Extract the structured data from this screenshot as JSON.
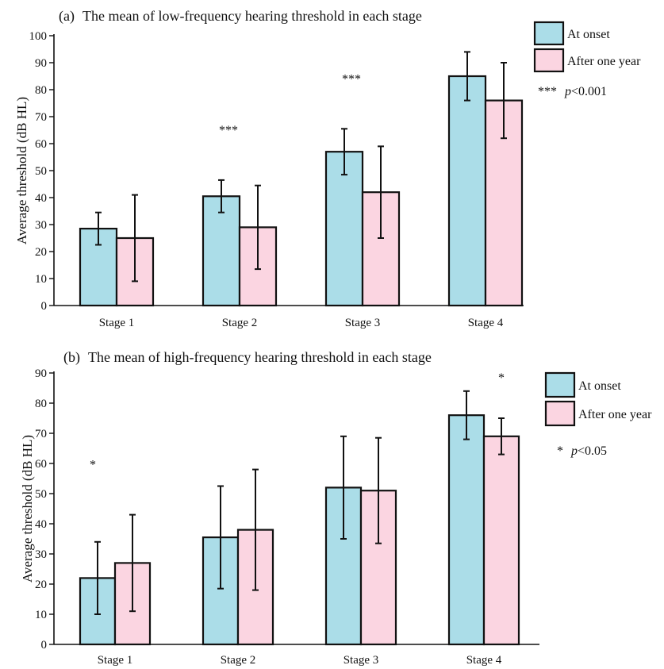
{
  "colors": {
    "onset": "#ABDDE8",
    "after": "#FBD5E1",
    "axis": "#111111"
  },
  "chart_data": [
    {
      "type": "bar",
      "panel_label": "(a)",
      "title": "The mean of low-frequency hearing threshold in each stage",
      "xlabel": "",
      "ylabel": "Average threshold (dB HL)",
      "ylim": [
        0,
        100
      ],
      "yticks": [
        "0",
        "10",
        "20",
        "30",
        "40",
        "50",
        "60",
        "70",
        "80",
        "90",
        "100"
      ],
      "categories": [
        "Stage 1",
        "Stage 2",
        "Stage 3",
        "Stage 4"
      ],
      "series": [
        {
          "name": "At onset",
          "values": [
            28.5,
            40.5,
            57,
            85
          ],
          "error": [
            6,
            6,
            8.5,
            9
          ]
        },
        {
          "name": "After one year",
          "values": [
            25,
            29,
            42,
            76
          ],
          "error": [
            16,
            15.5,
            17,
            14
          ]
        }
      ],
      "significance": [
        "",
        "***",
        "***",
        ""
      ],
      "sig_note": {
        "stars": "***",
        "p_label": "p",
        "p_value": "<0.001"
      },
      "legend_position": "top-right",
      "grid": false
    },
    {
      "type": "bar",
      "panel_label": "(b)",
      "title": "The mean of high-frequency hearing threshold in each stage",
      "xlabel": "",
      "ylabel": "Average threshold (dB HL)",
      "ylim": [
        0,
        90
      ],
      "yticks": [
        "0",
        "10",
        "20",
        "30",
        "40",
        "50",
        "60",
        "70",
        "80",
        "90"
      ],
      "categories": [
        "Stage 1",
        "Stage 2",
        "Stage 3",
        "Stage 4"
      ],
      "series": [
        {
          "name": "At onset",
          "values": [
            22,
            35.5,
            52,
            76
          ],
          "error": [
            12,
            17,
            17,
            8
          ]
        },
        {
          "name": "After one year",
          "values": [
            27,
            38,
            51,
            69
          ],
          "error": [
            16,
            20,
            17.5,
            6
          ]
        }
      ],
      "significance": [
        "*",
        "",
        "",
        "*"
      ],
      "sig_note": {
        "stars": "*",
        "p_label": "p",
        "p_value": "<0.05"
      },
      "legend_position": "top-right",
      "grid": false
    }
  ]
}
